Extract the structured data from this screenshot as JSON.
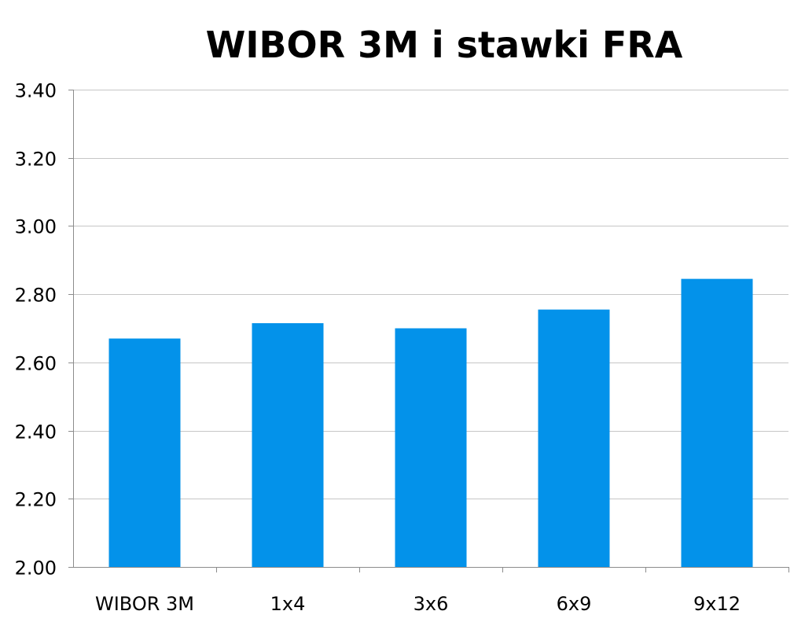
{
  "chart_data": {
    "type": "bar",
    "title": "WIBOR 3M i stawki FRA",
    "xlabel": "",
    "ylabel": "",
    "categories": [
      "WIBOR 3M",
      "1x4",
      "3x6",
      "6x9",
      "9x12"
    ],
    "series": [
      {
        "values": [
          2.67,
          2.715,
          2.7,
          2.755,
          2.845
        ]
      }
    ],
    "ylim": [
      2.0,
      3.4
    ],
    "yticks": [
      "2.00",
      "2.20",
      "2.40",
      "2.60",
      "2.80",
      "3.00",
      "3.20",
      "3.40"
    ],
    "grid": true,
    "legend": "none",
    "colors": {
      "bar": "#0392EA",
      "grid": "#C6C6C6",
      "axis": "#8C8C8C"
    }
  }
}
